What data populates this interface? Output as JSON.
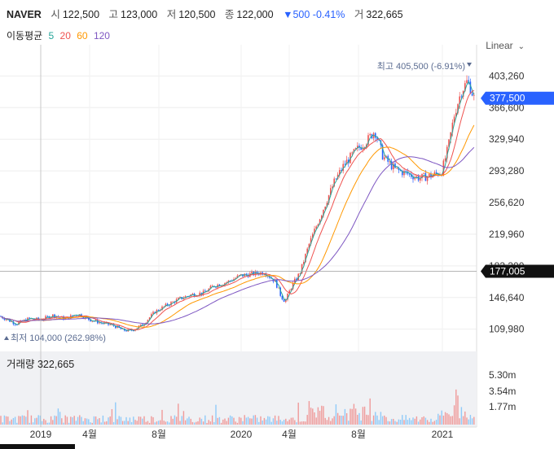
{
  "header": {
    "symbol": "NAVER",
    "open_label": "시",
    "open": "122,500",
    "high_label": "고",
    "high": "123,000",
    "low_label": "저",
    "low": "120,500",
    "close_label": "종",
    "close": "122,000",
    "change": "▼500 -0.41%",
    "volume_label": "거",
    "volume": "322,665"
  },
  "ma_legend": {
    "title": "이동평균",
    "items": [
      {
        "label": "5",
        "color": "#26a69a"
      },
      {
        "label": "20",
        "color": "#ef5350"
      },
      {
        "label": "60",
        "color": "#ff9800"
      },
      {
        "label": "120",
        "color": "#7e57c2"
      }
    ]
  },
  "scale_mode": "Linear",
  "annotations": {
    "high": "최고 405,500 (-6.91%)",
    "low": "최저 104,000 (262.98%)",
    "current_price": "377,500",
    "crosshair_price": "177,005"
  },
  "volume_panel": {
    "title": "거래량 322,665"
  },
  "chart_data": {
    "type": "candlestick",
    "price_axis": {
      "ticks": [
        "403,260",
        "366,600",
        "329,940",
        "293,280",
        "256,620",
        "219,960",
        "183,300",
        "146,640",
        "109,980"
      ],
      "ylim": [
        88000,
        430000
      ]
    },
    "volume_axis": {
      "ticks": [
        "5.30m",
        "3.54m",
        "1.77m"
      ]
    },
    "time_axis": {
      "ticks": [
        "2019",
        "4월",
        "8월",
        "2020",
        "4월",
        "8월",
        "2021"
      ]
    },
    "price_path": [
      [
        0,
        125000
      ],
      [
        20,
        116000
      ],
      [
        35,
        122000
      ],
      [
        50,
        121000
      ],
      [
        65,
        126000
      ],
      [
        80,
        122000
      ],
      [
        95,
        128000
      ],
      [
        110,
        121000
      ],
      [
        125,
        117000
      ],
      [
        140,
        114000
      ],
      [
        150,
        109000
      ],
      [
        160,
        108000
      ],
      [
        175,
        115000
      ],
      [
        190,
        130000
      ],
      [
        205,
        138000
      ],
      [
        220,
        145000
      ],
      [
        235,
        150000
      ],
      [
        250,
        152000
      ],
      [
        262,
        160000
      ],
      [
        280,
        165000
      ],
      [
        295,
        172000
      ],
      [
        310,
        174000
      ],
      [
        325,
        176000
      ],
      [
        338,
        165000
      ],
      [
        345,
        148000
      ],
      [
        350,
        142000
      ],
      [
        358,
        160000
      ],
      [
        368,
        175000
      ],
      [
        380,
        210000
      ],
      [
        395,
        245000
      ],
      [
        410,
        280000
      ],
      [
        422,
        300000
      ],
      [
        438,
        318000
      ],
      [
        452,
        330000
      ],
      [
        460,
        340000
      ],
      [
        470,
        310000
      ],
      [
        485,
        295000
      ],
      [
        500,
        290000
      ],
      [
        515,
        285000
      ],
      [
        530,
        288000
      ],
      [
        542,
        292000
      ],
      [
        550,
        320000
      ],
      [
        558,
        360000
      ],
      [
        566,
        385000
      ],
      [
        574,
        398000
      ],
      [
        582,
        377500
      ]
    ],
    "moving_averages": [
      {
        "name": "5",
        "color": "#26a69a",
        "lag": 0,
        "smooth": 2
      },
      {
        "name": "20",
        "color": "#ef5350",
        "lag": 6,
        "smooth": 8
      },
      {
        "name": "60",
        "color": "#ff9800",
        "lag": 22,
        "smooth": 22
      },
      {
        "name": "120",
        "color": "#7e57c2",
        "lag": 48,
        "smooth": 40
      }
    ],
    "high": 405500,
    "low": 104000,
    "current": 377500,
    "crosshair": 177005
  }
}
